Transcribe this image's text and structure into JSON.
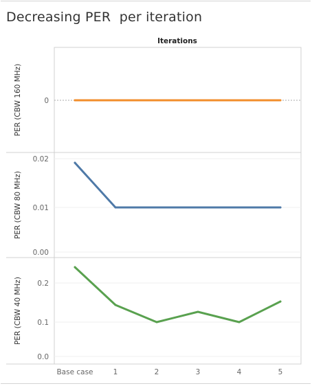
{
  "title": "Decreasing PER  per iteration",
  "column_header": "Iterations",
  "colors": {
    "orange": "#f28e2b",
    "blue": "#4e79a7",
    "green": "#59a14f",
    "grid": "#efefef",
    "zero": "#a8a8a8"
  },
  "chart_data": [
    {
      "type": "line",
      "ylabel": "PER (CBW 160 MHz)",
      "categories": [
        "Base case",
        "1",
        "2",
        "3",
        "4",
        "5"
      ],
      "values": [
        0,
        0,
        0,
        0,
        0,
        0
      ],
      "yticks": [
        "0"
      ],
      "ylim": [
        -0.01,
        0.01
      ],
      "color": "#f28e2b"
    },
    {
      "type": "line",
      "ylabel": "PER (CBW 80 MHz)",
      "categories": [
        "Base case",
        "1",
        "2",
        "3",
        "4",
        "5"
      ],
      "values": [
        0.02,
        0.01,
        0.01,
        0.01,
        0.01,
        0.01
      ],
      "yticks": [
        "0.02",
        "0.01",
        "0.00"
      ],
      "ylim": [
        0.0,
        0.0207
      ],
      "color": "#4e79a7"
    },
    {
      "type": "line",
      "ylabel": "PER (CBW 40 MHz)",
      "categories": [
        "Base case",
        "1",
        "2",
        "3",
        "4",
        "5"
      ],
      "values": [
        0.26,
        0.15,
        0.1,
        0.13,
        0.1,
        0.16
      ],
      "yticks": [
        "0.2",
        "0.1",
        "0.0"
      ],
      "ylim": [
        0.0,
        0.284
      ],
      "color": "#59a14f"
    }
  ],
  "xaxis": {
    "labels": [
      "Base case",
      "1",
      "2",
      "3",
      "4",
      "5"
    ]
  }
}
